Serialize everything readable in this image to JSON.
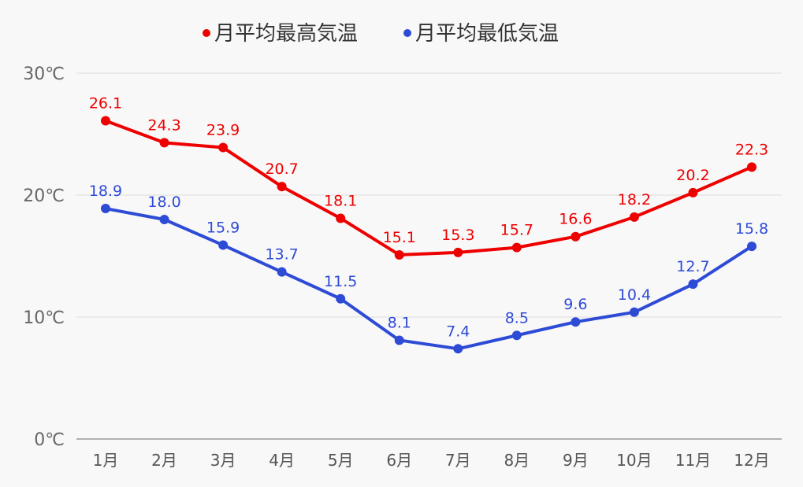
{
  "chart_data": {
    "type": "line",
    "title": "",
    "xlabel": "",
    "ylabel": "",
    "categories": [
      "1月",
      "2月",
      "3月",
      "4月",
      "5月",
      "6月",
      "7月",
      "8月",
      "9月",
      "10月",
      "11月",
      "12月"
    ],
    "ylim": [
      0,
      30
    ],
    "yticks": [
      0,
      10,
      20,
      30
    ],
    "ytick_labels": [
      "0℃",
      "10℃",
      "20℃",
      "30℃"
    ],
    "grid": true,
    "legend_position": "top-center",
    "series": [
      {
        "name": "月平均最高気温",
        "color": "#ee0000",
        "values": [
          26.1,
          24.3,
          23.9,
          20.7,
          18.1,
          15.1,
          15.3,
          15.7,
          16.6,
          18.2,
          20.2,
          22.3
        ],
        "labels": [
          "26.1",
          "24.3",
          "23.9",
          "20.7",
          "18.1",
          "15.1",
          "15.3",
          "15.7",
          "16.6",
          "18.2",
          "20.2",
          "22.3"
        ]
      },
      {
        "name": "月平均最低気温",
        "color": "#2e4bd6",
        "values": [
          18.9,
          18.0,
          15.9,
          13.7,
          11.5,
          8.1,
          7.4,
          8.5,
          9.6,
          10.4,
          12.7,
          15.8
        ],
        "labels": [
          "18.9",
          "18.0",
          "15.9",
          "13.7",
          "11.5",
          "8.1",
          "7.4",
          "8.5",
          "9.6",
          "10.4",
          "12.7",
          "15.8"
        ]
      }
    ]
  }
}
